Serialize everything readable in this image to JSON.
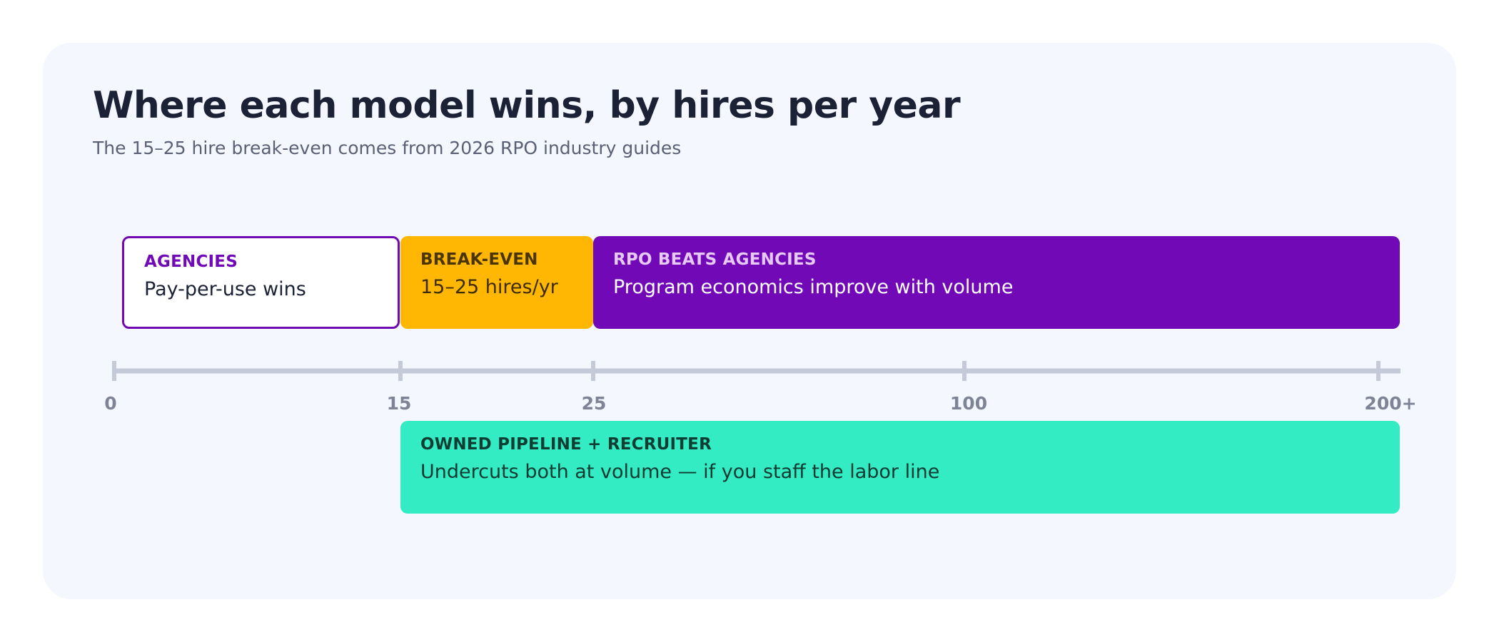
{
  "title": "Where each model wins, by hires per year",
  "subtitle": "The 15–25 hire break-even comes from 2026 RPO industry guides",
  "bands": {
    "agencies": {
      "kicker": "AGENCIES",
      "desc": "Pay-per-use wins"
    },
    "break_even": {
      "kicker": "BREAK-EVEN",
      "desc": "15–25 hires/yr"
    },
    "rpo": {
      "kicker": "RPO BEATS AGENCIES",
      "desc": "Program economics improve with volume"
    },
    "owned": {
      "kicker": "OWNED PIPELINE + RECRUITER",
      "desc": "Undercuts both at volume — if you staff the labor line"
    }
  },
  "axis": {
    "ticks": [
      "0",
      "15",
      "25",
      "100",
      "200+"
    ]
  },
  "colors": {
    "purple": "#7209b7",
    "amber": "#ffb703",
    "teal": "#33ecc3",
    "axis": "#c5cad8"
  }
}
